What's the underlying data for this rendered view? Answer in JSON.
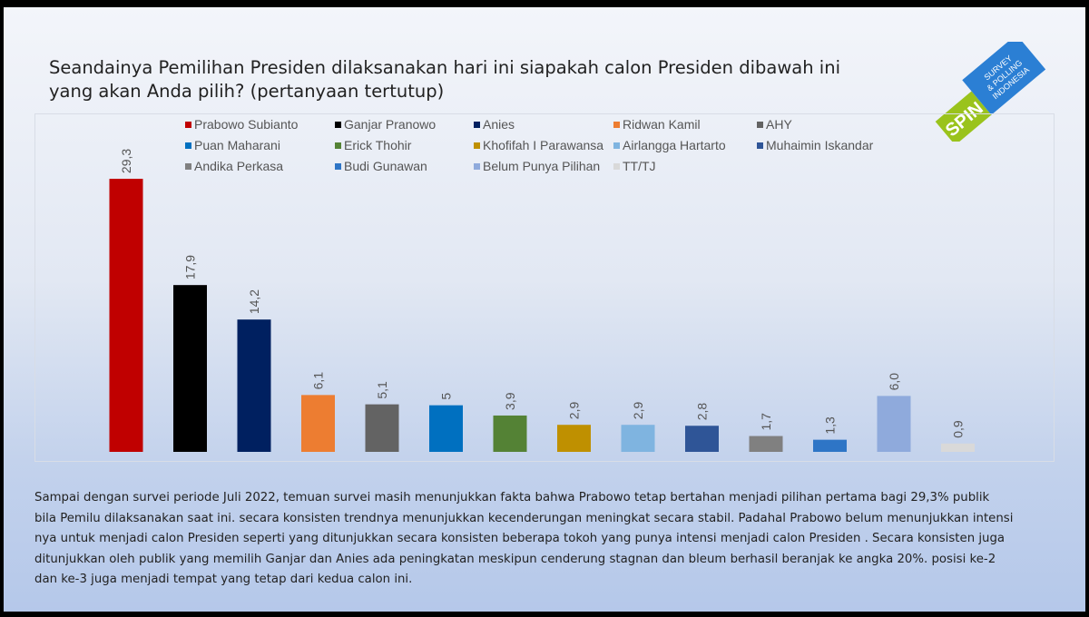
{
  "title_lines": [
    "Seandainya Pemilihan Presiden dilaksanakan hari ini siapakah calon Presiden dibawah ini",
    "yang akan Anda pilih? (pertanyaan tertutup)"
  ],
  "logo": {
    "text": "SPIN",
    "subtitle": "SURVEY & POLLING INDONESIA",
    "green": "#9ac31c",
    "blue": "#2b7fd4"
  },
  "chart_data": {
    "type": "bar",
    "title": "Seandainya Pemilihan Presiden dilaksanakan hari ini siapakah calon Presiden dibawah ini yang akan Anda pilih? (pertanyaan tertutup)",
    "legend_position": "top",
    "grid": false,
    "ylim": [
      0,
      30
    ],
    "series": [
      {
        "name": "Prabowo Subianto",
        "value": 29.3,
        "label": "29,3",
        "color": "#c00000"
      },
      {
        "name": "Ganjar Pranowo",
        "value": 17.9,
        "label": "17,9",
        "color": "#000000"
      },
      {
        "name": "Anies",
        "value": 14.2,
        "label": "14,2",
        "color": "#002060"
      },
      {
        "name": "Ridwan Kamil",
        "value": 6.1,
        "label": "6,1",
        "color": "#ed7d31"
      },
      {
        "name": "AHY",
        "value": 5.1,
        "label": "5,1",
        "color": "#636363"
      },
      {
        "name": "Puan Maharani",
        "value": 5.0,
        "label": "5",
        "color": "#0070c0"
      },
      {
        "name": "Erick Thohir",
        "value": 3.9,
        "label": "3,9",
        "color": "#548235"
      },
      {
        "name": "Khofifah I Parawansa",
        "value": 2.9,
        "label": "2,9",
        "color": "#bf9000"
      },
      {
        "name": "Airlangga Hartarto",
        "value": 2.9,
        "label": "2,9",
        "color": "#7fb4e0"
      },
      {
        "name": "Muhaimin Iskandar",
        "value": 2.8,
        "label": "2,8",
        "color": "#2f5597"
      },
      {
        "name": "Andika Perkasa",
        "value": 1.7,
        "label": "1,7",
        "color": "#808080"
      },
      {
        "name": "Budi Gunawan",
        "value": 1.3,
        "label": "1,3",
        "color": "#2e75c6"
      },
      {
        "name": "Belum Punya Pilihan",
        "value": 6.0,
        "label": "6,0",
        "color": "#8faadc"
      },
      {
        "name": "TT/TJ",
        "value": 0.9,
        "label": "0,9",
        "color": "#d9d9d9"
      }
    ]
  },
  "paragraph_lines": [
    "Sampai dengan survei periode Juli 2022, temuan survei masih menunjukkan fakta bahwa Prabowo tetap bertahan menjadi pilihan pertama bagi 29,3% publik",
    "bila Pemilu dilaksanakan saat ini. secara konsisten trendnya menunjukkan kecenderungan meningkat secara stabil. Padahal Prabowo belum menunjukkan intensi",
    "nya untuk menjadi calon Presiden seperti yang ditunjukkan secara konsisten beberapa tokoh yang punya intensi menjadi calon Presiden . Secara konsisten juga",
    "ditunjukkan oleh publik yang memilih Ganjar dan Anies ada peningkatan meskipun cenderung stagnan dan bleum berhasil beranjak ke angka 20%. posisi ke-2",
    "dan ke-3 juga menjadi tempat yang tetap dari kedua calon ini."
  ]
}
